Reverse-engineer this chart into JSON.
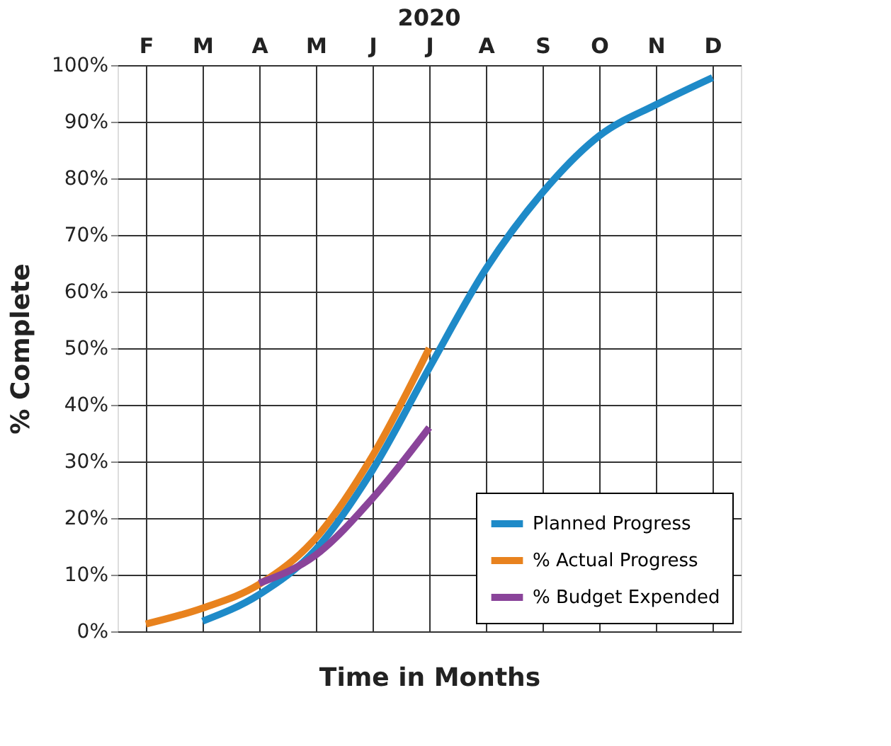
{
  "chart_data": {
    "type": "line",
    "title": "2020",
    "xlabel": "Time in Months",
    "ylabel": "% Complete",
    "categories": [
      "F",
      "M",
      "A",
      "M",
      "J",
      "J",
      "A",
      "S",
      "O",
      "N",
      "D"
    ],
    "ylim": [
      0,
      100
    ],
    "yticks": [
      {
        "value": 0,
        "label": "0%"
      },
      {
        "value": 10,
        "label": "10%"
      },
      {
        "value": 20,
        "label": "20%"
      },
      {
        "value": 30,
        "label": "30%"
      },
      {
        "value": 40,
        "label": "40%"
      },
      {
        "value": 50,
        "label": "50%"
      },
      {
        "value": 60,
        "label": "60%"
      },
      {
        "value": 70,
        "label": "70%"
      },
      {
        "value": 80,
        "label": "80%"
      },
      {
        "value": 90,
        "label": "90%"
      },
      {
        "value": 100,
        "label": "100%"
      }
    ],
    "grid": true,
    "legend": "bottom right",
    "marker": "none",
    "line_style": "solid",
    "series": [
      {
        "name": "Planned Progress",
        "color": "#1e8ac8",
        "values": [
          null,
          1.8,
          6.5,
          14.5,
          28.5,
          46.5,
          64,
          77.5,
          87.5,
          93,
          97.8
        ]
      },
      {
        "name": "% Actual Progress",
        "color": "#e8821e",
        "values": [
          1.3,
          4.1,
          8.3,
          16.5,
          31,
          50,
          null,
          null,
          null,
          null,
          null
        ]
      },
      {
        "name": "% Budget Expended",
        "color": "#8a449a",
        "values": [
          null,
          null,
          8.5,
          13.5,
          23.5,
          36,
          null,
          null,
          null,
          null,
          null
        ]
      }
    ]
  }
}
